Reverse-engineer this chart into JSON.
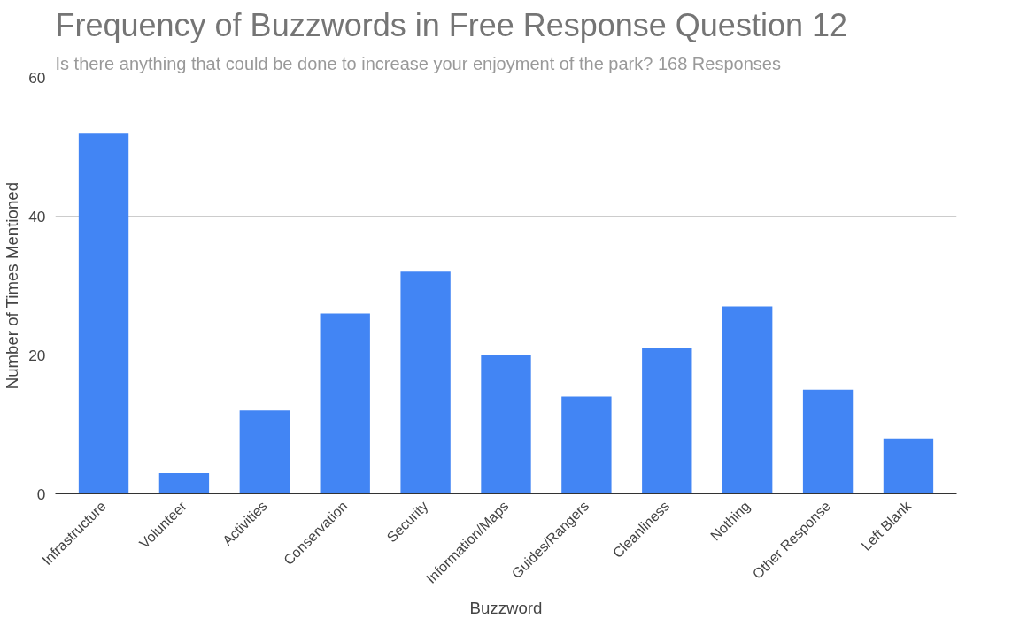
{
  "chart_data": {
    "type": "bar",
    "title": "Frequency of Buzzwords in Free Response Question 12",
    "subtitle": "Is there anything that could be done to increase your enjoyment of the park? 168 Responses",
    "xlabel": "Buzzword",
    "ylabel": "Number of Times Mentioned",
    "categories": [
      "Infrastructure",
      "Volunteer",
      "Activities",
      "Conservation",
      "Security",
      "Information/Maps",
      "Guides/Rangers",
      "Cleanliness",
      "Nothing",
      "Other Response",
      "Left Blank"
    ],
    "values": [
      52,
      3,
      12,
      26,
      32,
      20,
      14,
      21,
      27,
      15,
      8
    ],
    "color": "#4285f4",
    "ylim": [
      0,
      60
    ],
    "yticks": [
      0,
      20,
      40,
      60
    ],
    "grid": "y"
  }
}
